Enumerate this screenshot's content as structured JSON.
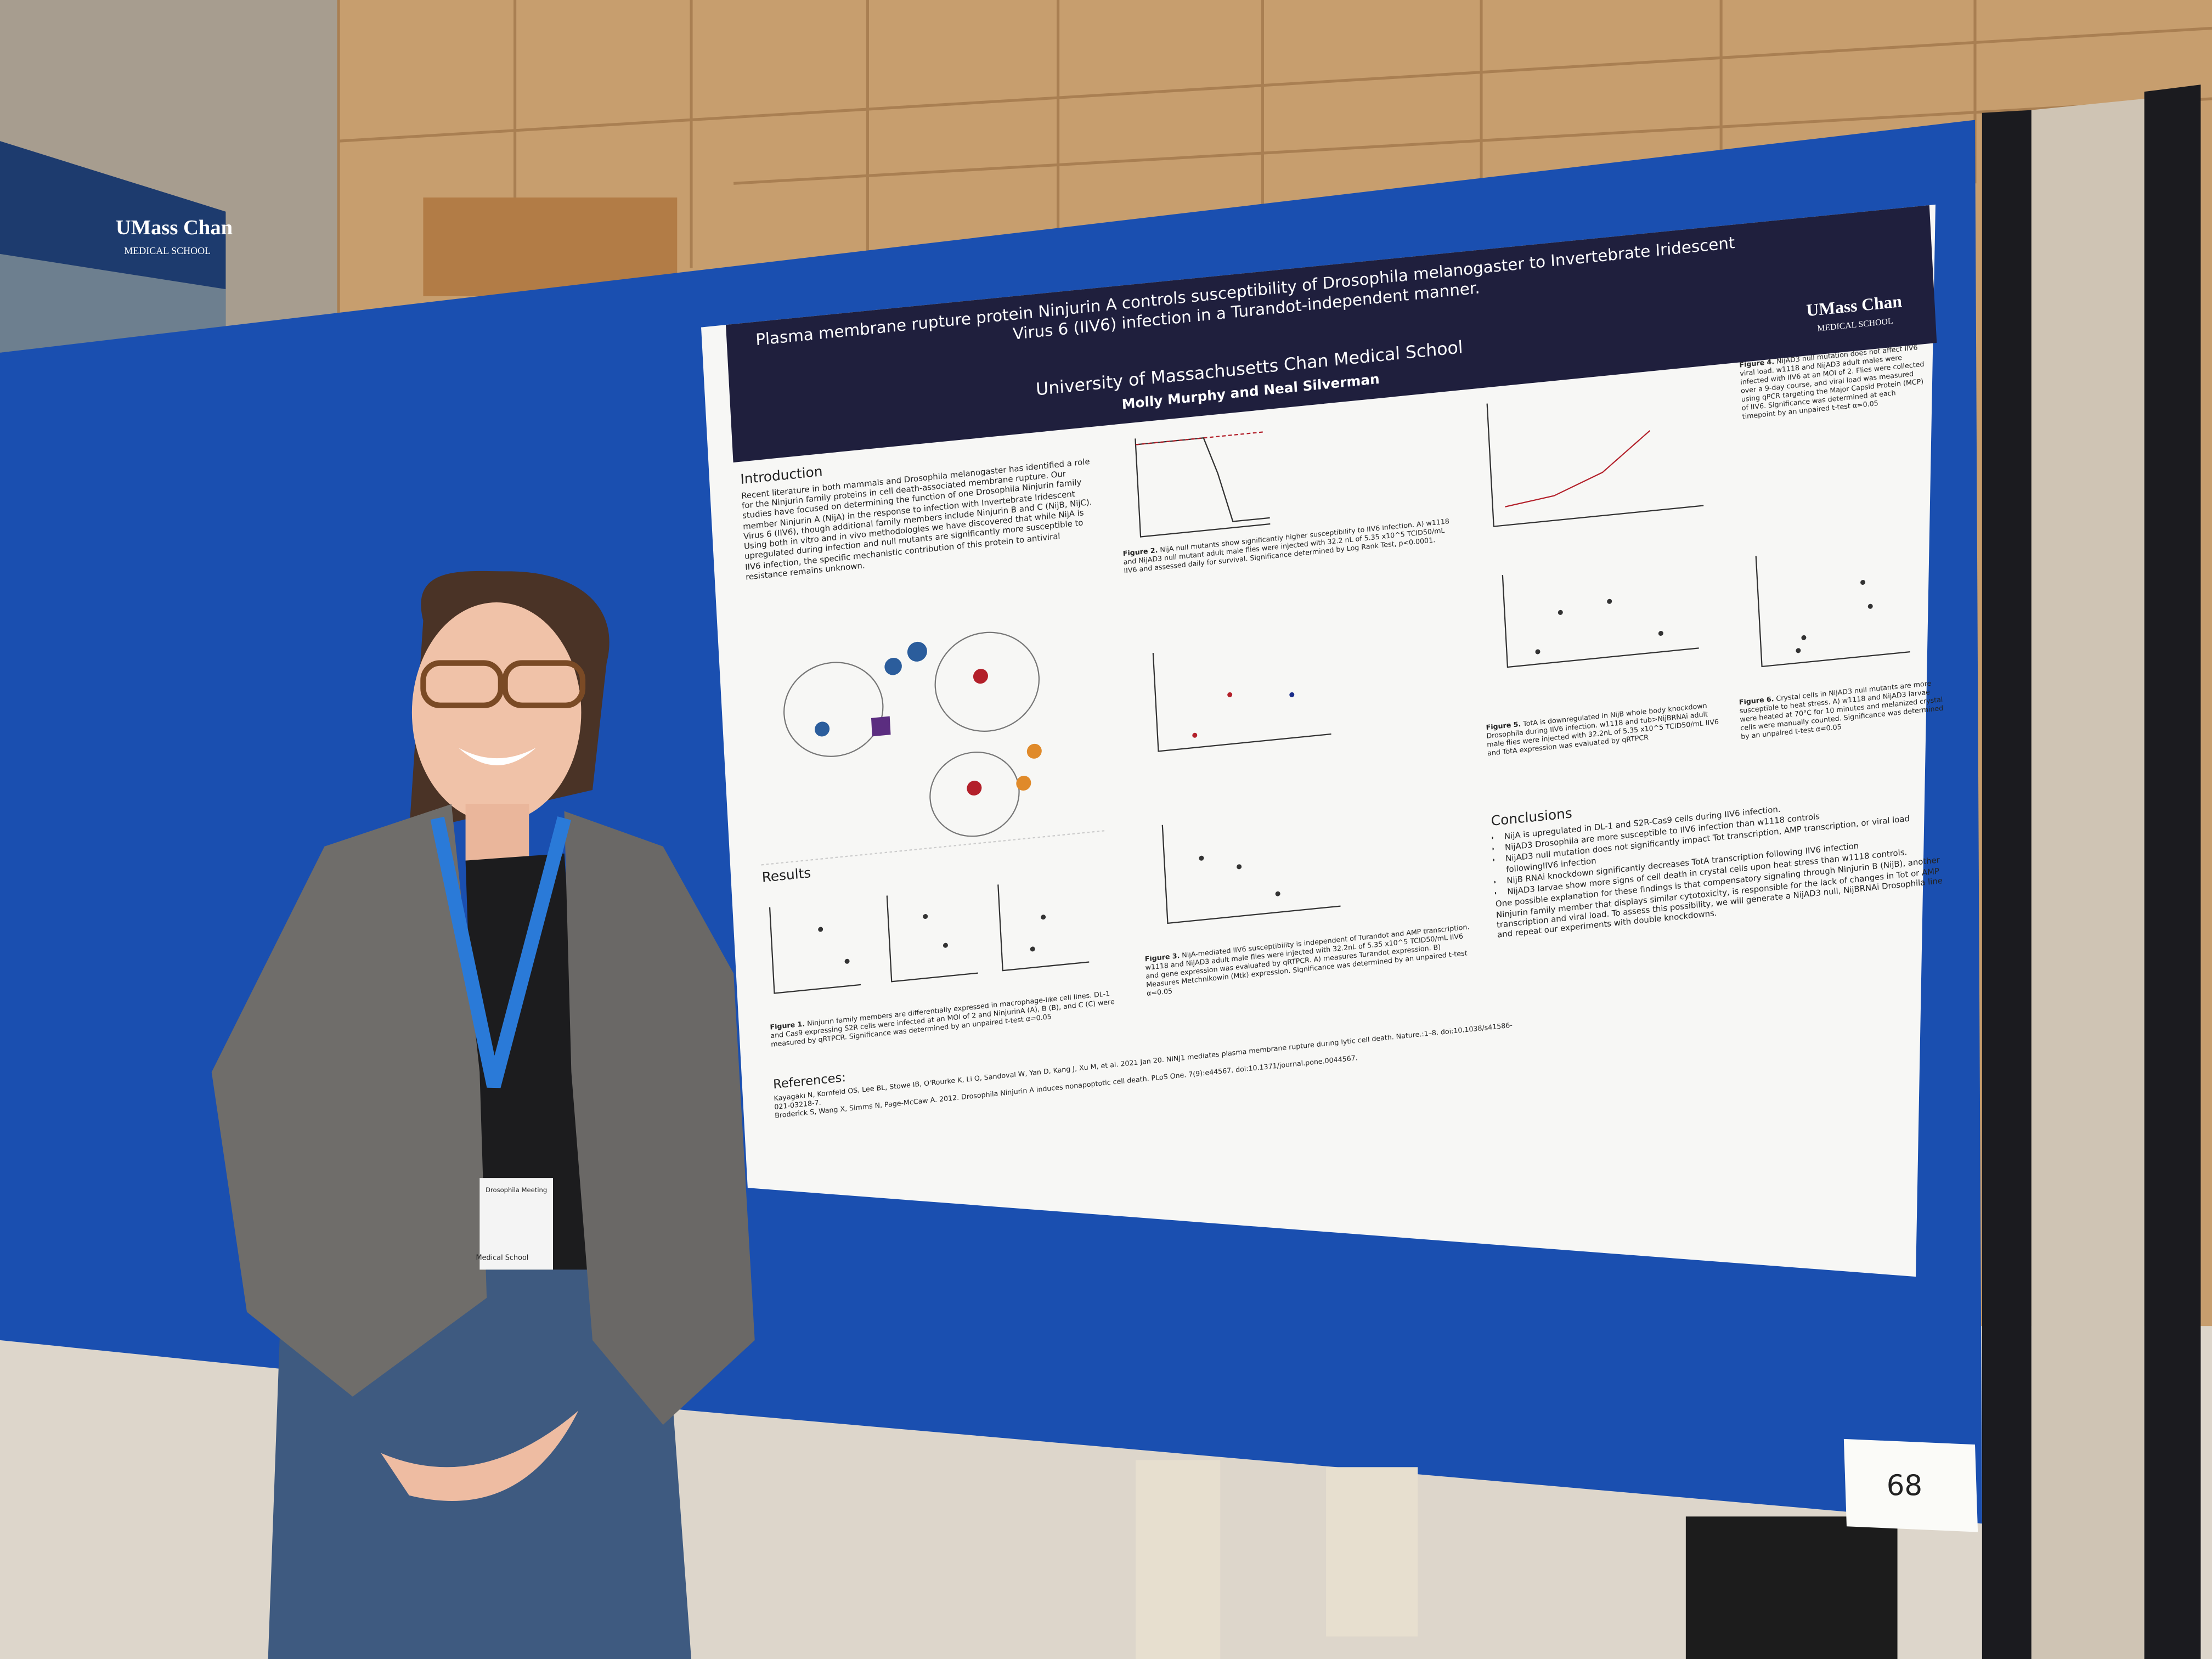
{
  "banner": {
    "brand": "UMass Chan",
    "sub": "MEDICAL SCHOOL"
  },
  "poster": {
    "title": "Plasma membrane rupture protein Ninjurin A controls susceptibility of Drosophila melanogaster to Invertebrate Iridescent Virus 6 (IIV6) infection in a Turandot-independent manner.",
    "institution": "University of Massachusetts Chan Medical School",
    "authors": "Molly Murphy and Neal Silverman",
    "logo": {
      "brand": "UMass Chan",
      "sub": "MEDICAL SCHOOL"
    },
    "introduction": {
      "heading": "Introduction",
      "text": "Recent literature in both mammals and Drosophila melanogaster has identified a role for the Ninjurin family proteins in cell death-associated membrane rupture. Our studies have focused on determining the function of one Drosophila Ninjurin family member Ninjurin A (NijA) in the response to infection with Invertebrate Iridescent Virus 6 (IIV6), though additional family members include Ninjurin B and C (NijB, NijC). Using both in vitro and in vivo methodologies we have discovered that while NijA is upregulated during infection and null mutants are significantly more susceptible to IIV6 infection, the specific mechanistic contribution of this protein to antiviral resistance remains unknown."
    },
    "results": {
      "heading": "Results"
    },
    "figures": [
      {
        "label": "Figure 1.",
        "caption": "Ninjurin family members are differentially expressed in macrophage-like cell lines. DL-1 and Cas9 expressing S2R cells were infected at an MOI of 2 and NinjurinA (A), B (B), and C (C) were measured by qRTPCR. Significance was determined by an unpaired t-test α=0.05"
      },
      {
        "label": "Figure 2.",
        "caption": "NijA null mutants show significantly higher susceptibility to IIV6 infection. A) w1118 and NijAD3 null mutant adult male flies were injected with 32.2 nL of 5.35 x10^5 TCID50/mL IIV6 and assessed daily for survival. Significance determined by Log Rank Test, p<0.0001."
      },
      {
        "label": "Figure 3.",
        "caption": "NijA-mediated IIV6 susceptibility is independent of Turandot and AMP transcription. w1118 and NijAD3 adult male flies were injected with 32.2nL of 5.35 x10^5 TCID50/mL IIV6 and gene expression was evaluated by qRTPCR. A) measures Turandot expression. B) Measures Metchnikowin (Mtk) expression. Significance was determined by an unpaired t-test α=0.05"
      },
      {
        "label": "Figure 4.",
        "caption": "NijAD3 null mutation does not affect IIV6 viral load. w1118 and NijAD3 adult males were infected with IIV6 at an MOI of 2. Flies were collected over a 9-day course, and viral load was measured using qPCR targeting the Major Capsid Protein (MCP) of IIV6. Significance was determined at each timepoint by an unpaired t-test α=0.05"
      },
      {
        "label": "Figure 5.",
        "caption": "TotA is downregulated in NijB whole body knockdown Drosophila during IIV6 infection. w1118 and tub>NijBRNAi adult male flies were injected with 32.2nL of 5.35 x10^5 TCID50/mL IIV6 and TotA expression was evaluated by qRTPCR"
      },
      {
        "label": "Figure 6.",
        "caption": "Crystal cells in NijAD3 null mutants are more susceptible to heat stress. A) w1118 and NijAD3 larvae were heated at 70°C for 10 minutes and melanized crystal cells were manually counted. Significance was determined by an unpaired t-test α=0.05"
      }
    ],
    "references": {
      "heading": "References:",
      "items": [
        "Kayagaki N, Kornfeld OS, Lee BL, Stowe IB, O'Rourke K, Li Q, Sandoval W, Yan D, Kang J, Xu M, et al. 2021 Jan 20. NINJ1 mediates plasma membrane rupture during lytic cell death. Nature.:1–8. doi:10.1038/s41586-021-03218-7.",
        "Broderick S, Wang X, Simms N, Page-McCaw A. 2012. Drosophila Ninjurin A induces nonapoptotic cell death. PLoS One. 7(9):e44567. doi:10.1371/journal.pone.0044567."
      ]
    },
    "conclusions": {
      "heading": "Conclusions",
      "bullets": [
        "NijA is upregulated in DL-1 and S2R-Cas9 cells during IIV6 infection.",
        "NijAD3 Drosophila are more susceptible to IIV6 infection than w1118 controls",
        "NijAD3 null mutation does not significantly impact Tot transcription, AMP transcription, or viral load followingIIV6 infection",
        "NijB RNAi knockdown significantly decreases TotA transcription following IIV6 infection",
        "NijAD3 larvae show more signs of cell death in crystal cells upon heat stress than w1118 controls."
      ],
      "text": "One possible explanation for these findings is that compensatory signaling through Ninjurin B (NijB), another Ninjurin family member that displays similar cytotoxicity, is responsible for the lack of changes in Tot or AMP transcription and viral load. To assess this possibility, we will generate a NijAD3 null, NijBRNAi Drosophila line and repeat our experiments with double knockdowns."
    }
  },
  "badge": {
    "event": "Drosophila Meeting",
    "org": "Medical School"
  },
  "card": "68"
}
